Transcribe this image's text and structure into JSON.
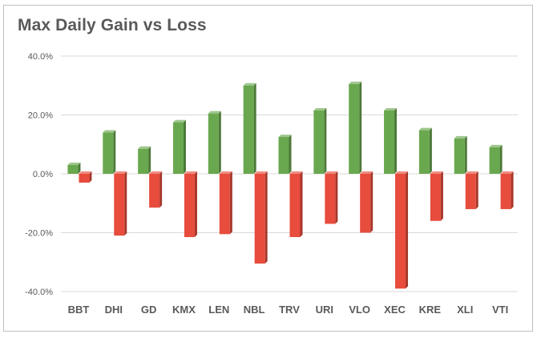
{
  "chart_data": {
    "type": "bar",
    "title": "Max Daily Gain vs Loss",
    "categories": [
      "BBT",
      "DHI",
      "GD",
      "KMX",
      "LEN",
      "NBL",
      "TRV",
      "URI",
      "VLO",
      "XEC",
      "KRE",
      "XLI",
      "VTI"
    ],
    "series": [
      {
        "values": [
          3.0,
          14.0,
          8.5,
          17.5,
          20.5,
          30.0,
          12.5,
          21.5,
          30.5,
          21.5,
          14.8,
          12.0,
          9.0
        ],
        "color": "#6aa84f"
      },
      {
        "values": [
          -3.0,
          -21.0,
          -11.5,
          -21.5,
          -20.5,
          -30.5,
          -21.5,
          -17.0,
          -20.0,
          -39.0,
          -16.0,
          -12.0,
          -12.0
        ],
        "color": "#e74c3c"
      }
    ],
    "ylim": [
      -40,
      40
    ],
    "yticks": [
      "-40.0%",
      "-20.0%",
      "0.0%",
      "20.0%",
      "40.0%"
    ],
    "grid": true,
    "legend": "none"
  }
}
